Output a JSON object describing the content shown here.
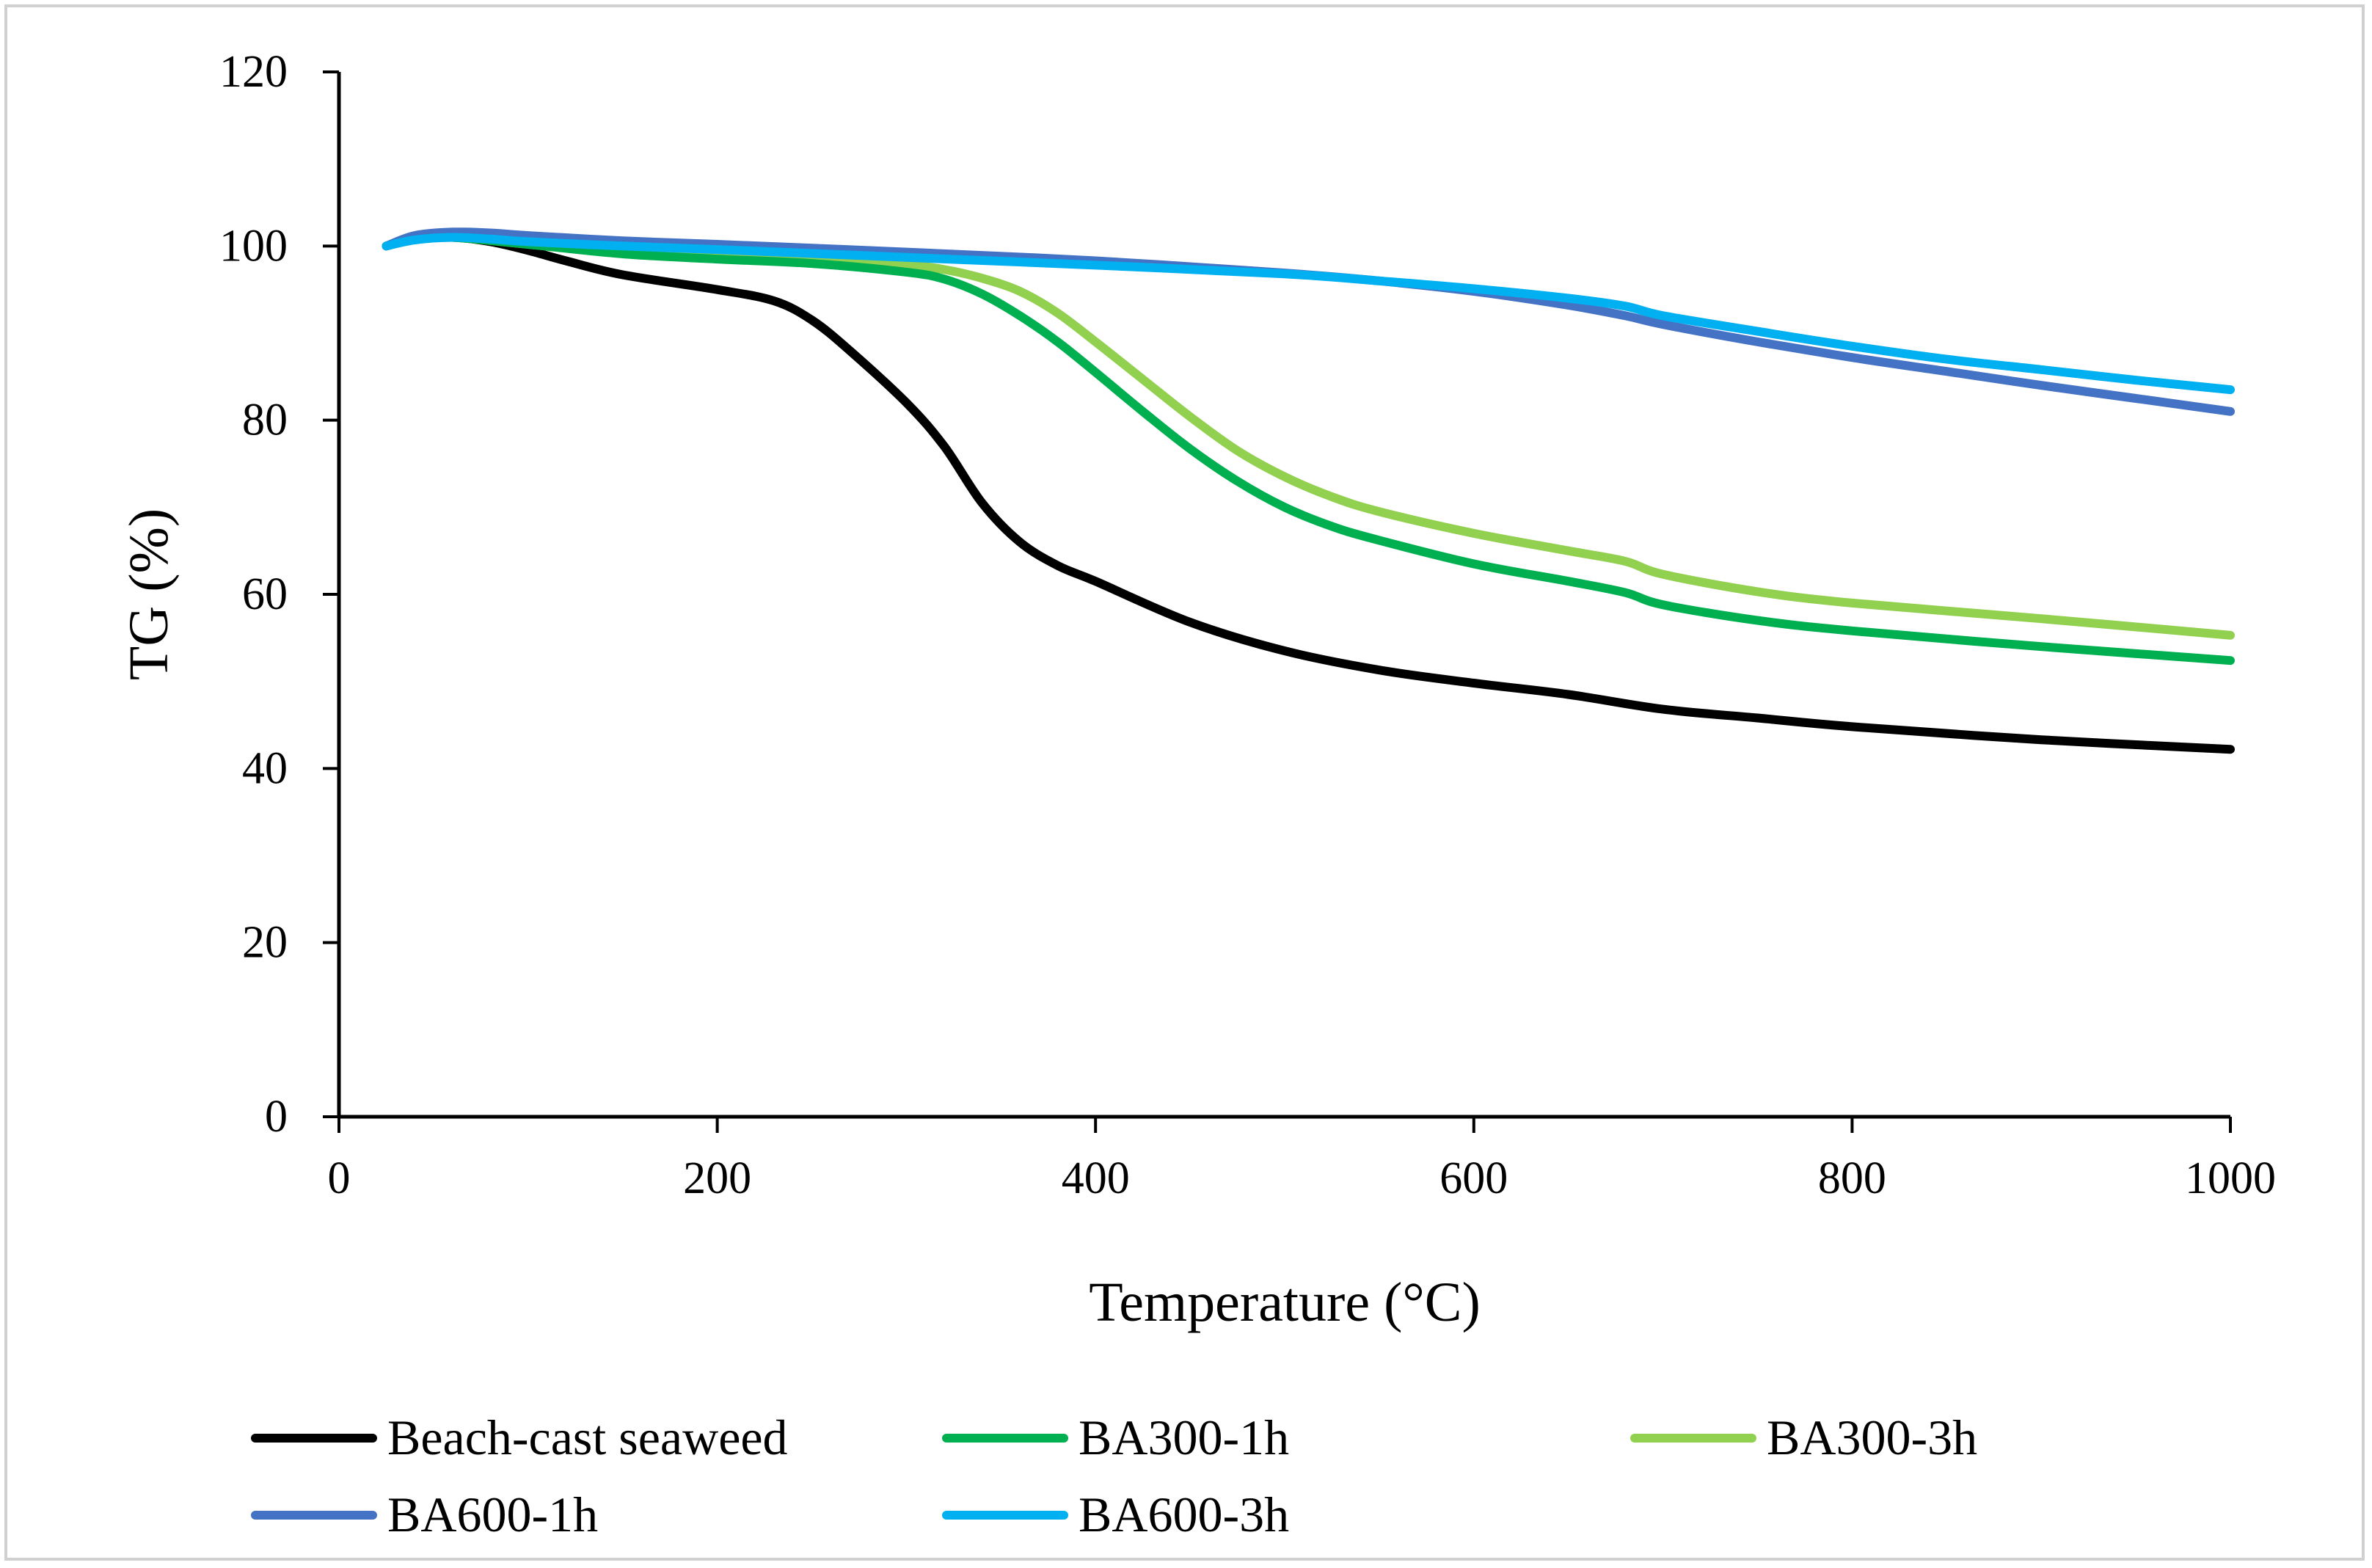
{
  "chart_data": {
    "type": "line",
    "title": "",
    "xlabel": "Temperature (°C)",
    "ylabel": "TG (%)",
    "xlim": [
      0,
      1000
    ],
    "ylim": [
      0,
      120
    ],
    "x_ticks": [
      0,
      200,
      400,
      600,
      800,
      1000
    ],
    "y_ticks": [
      0,
      20,
      40,
      60,
      80,
      100,
      120
    ],
    "x_tick_labels": [
      "0",
      "200",
      "400",
      "600",
      "800",
      "1000"
    ],
    "y_tick_labels": [
      "0",
      "20",
      "40",
      "60",
      "80",
      "100",
      "120"
    ],
    "grid": false,
    "legend_position": "bottom",
    "series": [
      {
        "name": "Beach-cast seaweed",
        "color": "#000000",
        "x": [
          25,
          40,
          60,
          80,
          100,
          120,
          150,
          200,
          230,
          250,
          270,
          300,
          320,
          340,
          360,
          380,
          400,
          450,
          500,
          550,
          600,
          650,
          700,
          750,
          800,
          900,
          1000
        ],
        "y": [
          100,
          100.8,
          101,
          100.5,
          99.5,
          98.3,
          96.7,
          95,
          93.7,
          91.5,
          88,
          82,
          77,
          70.5,
          66,
          63.3,
          61.5,
          56.8,
          53.5,
          51.3,
          49.8,
          48.5,
          46.8,
          45.8,
          44.8,
          43.3,
          42.2
        ]
      },
      {
        "name": "BA300-1h",
        "color": "#00b050",
        "x": [
          25,
          40,
          60,
          100,
          150,
          200,
          250,
          300,
          320,
          340,
          360,
          380,
          400,
          425,
          450,
          475,
          500,
          525,
          550,
          600,
          650,
          680,
          700,
          750,
          800,
          900,
          1000
        ],
        "y": [
          100,
          100.8,
          101,
          100.2,
          99.1,
          98.5,
          98,
          97,
          96.2,
          94.5,
          92,
          89,
          85.5,
          81,
          76.7,
          73,
          70,
          67.8,
          66.2,
          63.5,
          61.5,
          60.2,
          58.8,
          57,
          55.8,
          54,
          52.4
        ]
      },
      {
        "name": "BA300-3h",
        "color": "#92d050",
        "x": [
          25,
          40,
          60,
          100,
          150,
          200,
          250,
          300,
          320,
          340,
          360,
          380,
          400,
          425,
          450,
          475,
          500,
          525,
          550,
          600,
          650,
          680,
          700,
          750,
          800,
          900,
          1000
        ],
        "y": [
          100,
          100.8,
          101,
          100.2,
          99.2,
          98.7,
          98.3,
          97.8,
          97.3,
          96.3,
          94.8,
          92.3,
          89,
          84.7,
          80.4,
          76.5,
          73.5,
          71.2,
          69.5,
          67,
          65,
          63.8,
          62.3,
          60.3,
          59,
          57.2,
          55.3
        ]
      },
      {
        "name": "BA600-1h",
        "color": "#4472c4",
        "x": [
          25,
          40,
          60,
          80,
          100,
          150,
          200,
          300,
          400,
          500,
          550,
          600,
          650,
          680,
          700,
          750,
          800,
          850,
          900,
          950,
          1000
        ],
        "y": [
          100,
          101.2,
          101.6,
          101.5,
          101.2,
          100.6,
          100.2,
          99.3,
          98.3,
          96.9,
          96,
          94.8,
          93.2,
          92,
          91,
          89,
          87.2,
          85.6,
          84,
          82.5,
          81
        ]
      },
      {
        "name": "BA600-3h",
        "color": "#00b0f0",
        "x": [
          25,
          40,
          60,
          80,
          100,
          150,
          200,
          300,
          400,
          500,
          550,
          600,
          650,
          680,
          700,
          750,
          800,
          850,
          900,
          950,
          1000
        ],
        "y": [
          100,
          100.7,
          101,
          100.8,
          100.5,
          100,
          99.6,
          98.7,
          97.8,
          96.8,
          96,
          95.1,
          94,
          93.1,
          92,
          90.2,
          88.5,
          87,
          85.8,
          84.6,
          83.5
        ]
      }
    ]
  }
}
